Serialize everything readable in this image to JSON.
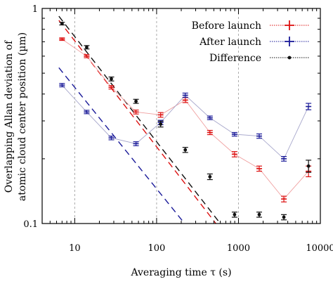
{
  "chart_data": {
    "type": "scatter",
    "title": "",
    "xlabel": "Averaging time τ (s)",
    "ylabel_lines": [
      "Overlapping Allan deviation of",
      "atomic cloud center position (µm)"
    ],
    "xscale": "log",
    "yscale": "log",
    "xlim": [
      4,
      10000
    ],
    "ylim": [
      0.1,
      1
    ],
    "x_tick_labels": [
      "10",
      "100",
      "1000",
      "10000"
    ],
    "y_tick_labels": [
      "0.1",
      "1"
    ],
    "vertical_reference_lines": [
      10,
      100,
      1000
    ],
    "legend": {
      "position": "top-right"
    },
    "colors": {
      "before": "#dd1111",
      "after": "#1a1a99",
      "difference": "#111111",
      "guide": "#aaaaaa"
    },
    "series": [
      {
        "name": "Before launch",
        "key": "before",
        "x": [
          7,
          14,
          28,
          56,
          112,
          224,
          448,
          896,
          1792,
          3584,
          7168
        ],
        "y": [
          0.72,
          0.6,
          0.43,
          0.33,
          0.32,
          0.375,
          0.265,
          0.21,
          0.18,
          0.13,
          0.175
        ],
        "err": [
          0.01,
          0.01,
          0.008,
          0.007,
          0.008,
          0.01,
          0.006,
          0.006,
          0.005,
          0.004,
          0.01
        ],
        "trend": {
          "x": [
            6.4,
            530
          ],
          "y": [
            0.88,
            0.1
          ]
        }
      },
      {
        "name": "After launch",
        "key": "after",
        "x": [
          7,
          14,
          28,
          56,
          112,
          224,
          448,
          896,
          1792,
          3584,
          7168
        ],
        "y": [
          0.44,
          0.33,
          0.25,
          0.235,
          0.295,
          0.395,
          0.31,
          0.26,
          0.255,
          0.2,
          0.35
        ],
        "err": [
          0.008,
          0.006,
          0.005,
          0.005,
          0.007,
          0.009,
          0.006,
          0.005,
          0.006,
          0.005,
          0.012
        ],
        "trend": {
          "x": [
            6.4,
            220
          ],
          "y": [
            0.53,
            0.1
          ]
        }
      },
      {
        "name": "Difference",
        "key": "difference",
        "x": [
          7,
          14,
          28,
          56,
          112,
          224,
          448,
          896,
          1792,
          3584,
          7168
        ],
        "y": [
          0.85,
          0.66,
          0.47,
          0.37,
          0.29,
          0.22,
          0.165,
          0.11,
          0.11,
          0.107,
          0.185
        ],
        "err": [
          0.012,
          0.012,
          0.01,
          0.008,
          0.009,
          0.006,
          0.005,
          0.003,
          0.003,
          0.003,
          0.012
        ],
        "trend": {
          "x": [
            6.4,
            600
          ],
          "y": [
            0.92,
            0.1
          ]
        }
      }
    ]
  }
}
